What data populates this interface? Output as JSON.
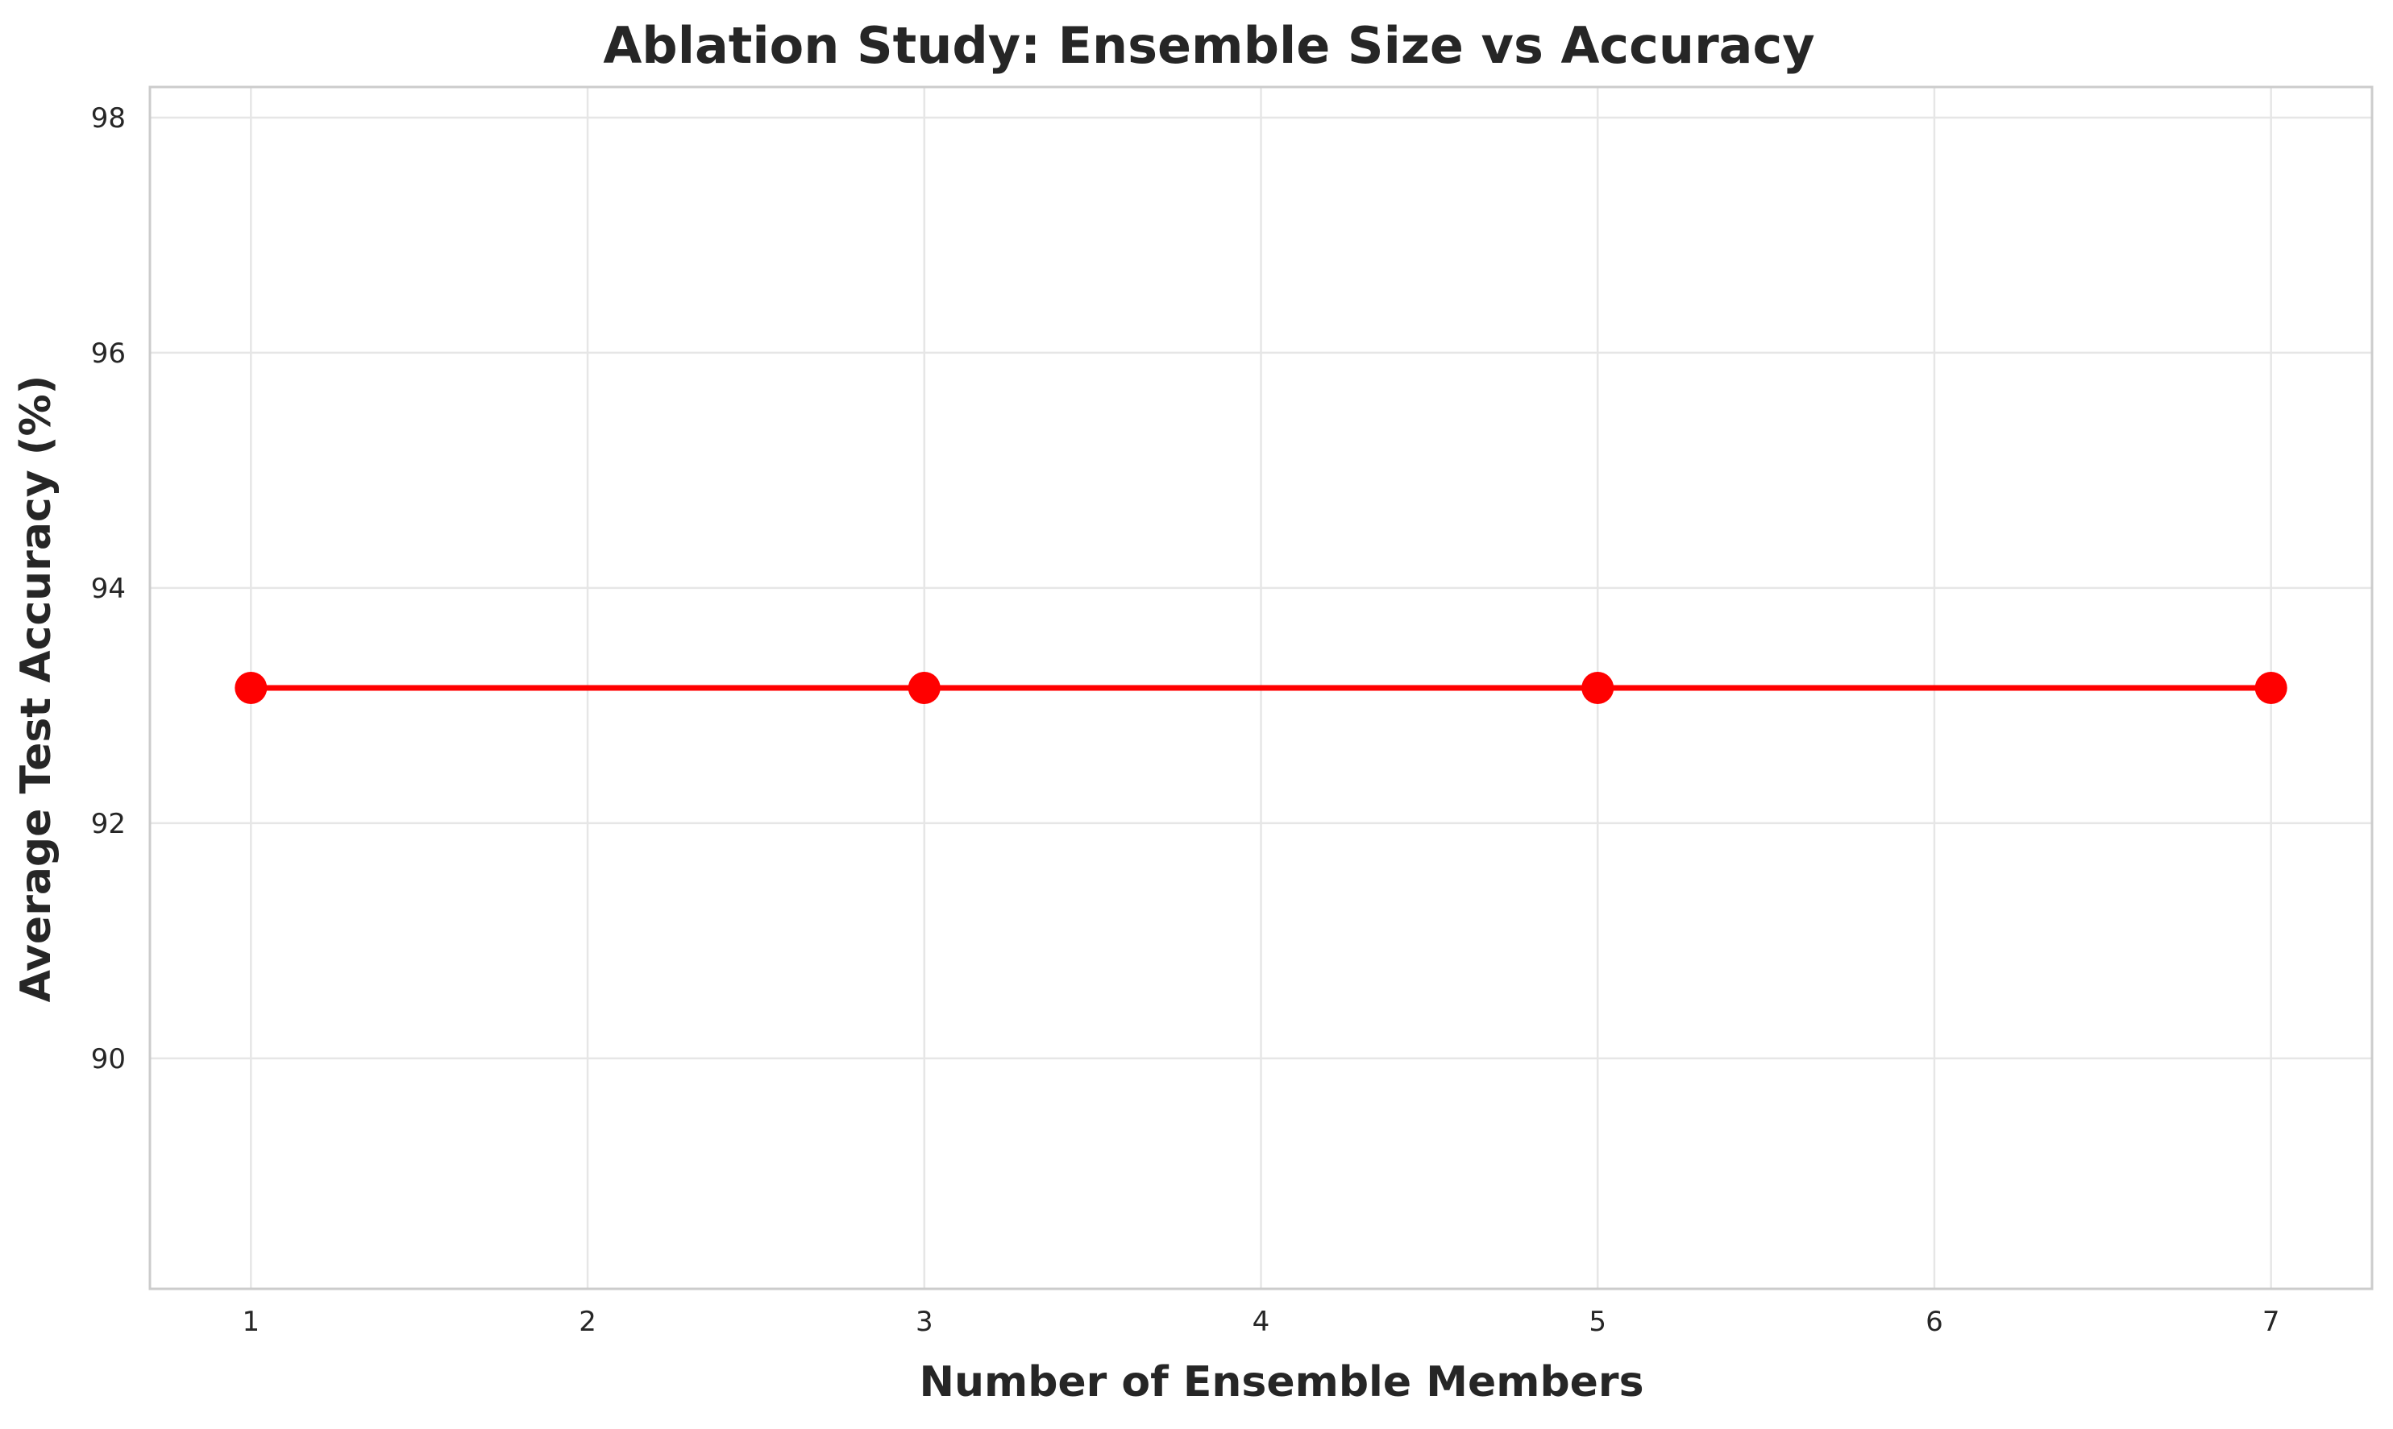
{
  "chart_data": {
    "type": "line",
    "title": "Ablation Study: Ensemble Size vs Accuracy",
    "xlabel": "Number of Ensemble Members",
    "ylabel": "Average Test Accuracy (%)",
    "x": [
      1,
      3,
      5,
      7
    ],
    "series": [
      {
        "values": [
          93.15,
          93.15,
          93.15,
          93.15
        ],
        "color": "#ff0000",
        "marker": "circle"
      }
    ],
    "xlim": [
      0.7,
      7.3
    ],
    "ylim": [
      88.04,
      98.26
    ],
    "xticks": [
      "1",
      "2",
      "3",
      "4",
      "5",
      "6",
      "7"
    ],
    "yticks": [
      "90",
      "92",
      "94",
      "96",
      "98"
    ],
    "grid": true,
    "legend": "none"
  }
}
